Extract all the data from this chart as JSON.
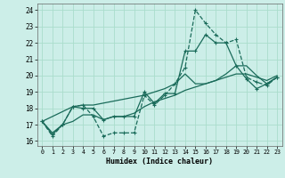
{
  "xlabel": "Humidex (Indice chaleur)",
  "bg_color": "#cceee8",
  "grid_color": "#aaddcc",
  "line_color": "#1a6b5a",
  "xlim": [
    -0.5,
    23.5
  ],
  "ylim": [
    15.7,
    24.4
  ],
  "yticks": [
    16,
    17,
    18,
    19,
    20,
    21,
    22,
    23,
    24
  ],
  "xticks": [
    0,
    1,
    2,
    3,
    4,
    5,
    6,
    7,
    8,
    9,
    10,
    11,
    12,
    13,
    14,
    15,
    16,
    17,
    18,
    19,
    20,
    21,
    22,
    23
  ],
  "line1_x": [
    0,
    1,
    2,
    3,
    4,
    5,
    6,
    7,
    8,
    9,
    10,
    11,
    12,
    13,
    14,
    15,
    16,
    17,
    18,
    19,
    20,
    21,
    22,
    23
  ],
  "line1_y": [
    17.2,
    16.3,
    17.0,
    18.1,
    18.2,
    17.5,
    16.3,
    16.5,
    16.5,
    16.5,
    18.8,
    18.2,
    18.8,
    19.5,
    20.5,
    24.0,
    23.2,
    22.5,
    22.0,
    22.2,
    19.9,
    19.6,
    19.4,
    19.9
  ],
  "line2_x": [
    0,
    1,
    2,
    3,
    4,
    5,
    6,
    7,
    8,
    9,
    10,
    11,
    12,
    13,
    14,
    15,
    16,
    17,
    18,
    19,
    20,
    21,
    22,
    23
  ],
  "line2_y": [
    17.2,
    16.4,
    17.0,
    18.1,
    18.0,
    18.0,
    17.3,
    17.5,
    17.5,
    17.5,
    19.0,
    18.3,
    18.9,
    18.9,
    21.5,
    21.5,
    22.5,
    22.0,
    22.0,
    20.6,
    19.8,
    19.2,
    19.5,
    19.9
  ],
  "line3_x": [
    0,
    3,
    4,
    5,
    10,
    11,
    12,
    13,
    14,
    15,
    16,
    17,
    18,
    19,
    20,
    21,
    22,
    23
  ],
  "line3_y": [
    17.2,
    18.1,
    18.2,
    18.2,
    18.8,
    19.0,
    19.2,
    19.5,
    20.1,
    19.5,
    19.5,
    19.7,
    20.1,
    20.6,
    20.6,
    20.0,
    19.5,
    19.9
  ],
  "line4_x": [
    0,
    1,
    2,
    3,
    4,
    5,
    6,
    7,
    8,
    9,
    10,
    11,
    12,
    13,
    14,
    15,
    16,
    17,
    18,
    19,
    20,
    21,
    22,
    23
  ],
  "line4_y": [
    17.2,
    16.5,
    17.0,
    17.2,
    17.6,
    17.6,
    17.3,
    17.5,
    17.5,
    17.7,
    18.1,
    18.4,
    18.6,
    18.8,
    19.1,
    19.3,
    19.5,
    19.7,
    19.9,
    20.1,
    20.1,
    19.9,
    19.7,
    20.0
  ]
}
